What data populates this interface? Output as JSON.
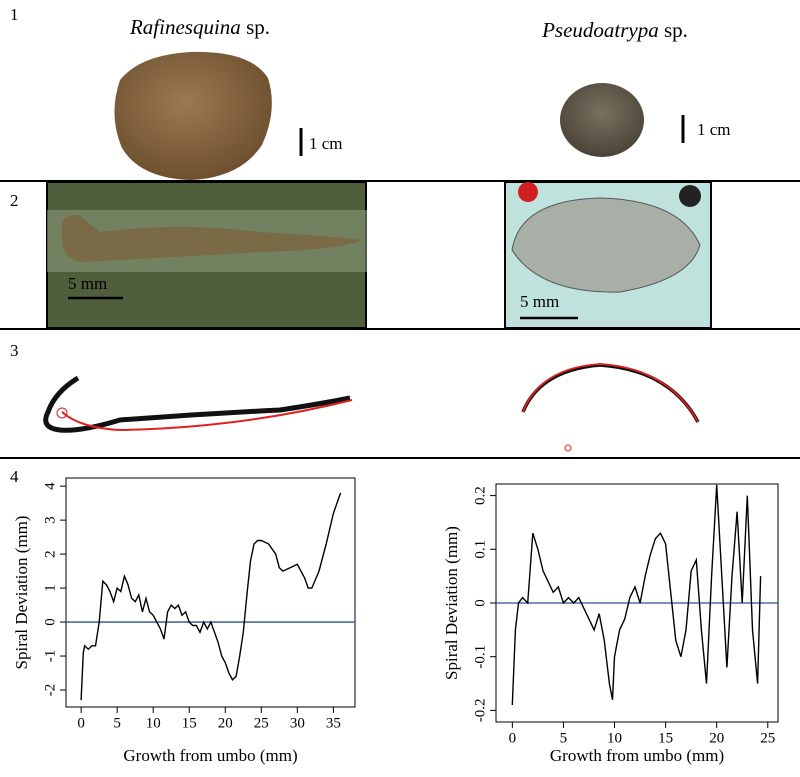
{
  "panels": {
    "labels": [
      "1",
      "2",
      "3",
      "4"
    ],
    "specimens": [
      {
        "genus": "Rafinesquina",
        "suffix": " sp.",
        "scale_photo": "1 cm",
        "scale_section": "5 mm"
      },
      {
        "genus": "Pseudoatrypa",
        "suffix": " sp.",
        "scale_photo": "1 cm",
        "scale_section": "5 mm"
      }
    ]
  },
  "chart_data": [
    {
      "type": "line",
      "xlabel": "Growth from umbo (mm)",
      "ylabel": "Spiral Deviation (mm)",
      "color": "#000000",
      "reference_line": 0,
      "reference_color": "#2f4f8f",
      "xlim": [
        -2.1,
        38
      ],
      "ylim": [
        -2.5,
        4.24
      ],
      "xticks": [
        0,
        5,
        10,
        15,
        20,
        25,
        30,
        35
      ],
      "yticks": [
        -2,
        -1,
        0,
        1,
        2,
        3,
        4
      ],
      "x": [
        0,
        0.3,
        0.5,
        1,
        1.5,
        2,
        2.5,
        3,
        3.5,
        4,
        4.5,
        5,
        5.5,
        6,
        6.5,
        7,
        7.5,
        8,
        8.5,
        9,
        9.5,
        10,
        10.5,
        11,
        11.5,
        12,
        12.5,
        13,
        13.5,
        14,
        14.5,
        15,
        15.5,
        16,
        16.5,
        17,
        17.5,
        18,
        18.5,
        19,
        19.5,
        20,
        20.5,
        21,
        21.5,
        22,
        22.5,
        23,
        23.5,
        24,
        24.5,
        25,
        26,
        27,
        27.5,
        28,
        29,
        30,
        31,
        31.5,
        32,
        33,
        34,
        35,
        36
      ],
      "values": [
        -2.3,
        -0.9,
        -0.7,
        -0.8,
        -0.7,
        -0.7,
        0,
        1.2,
        1.1,
        0.9,
        0.6,
        1.0,
        0.9,
        1.35,
        1.1,
        0.7,
        0.6,
        0.8,
        0.3,
        0.7,
        0.3,
        0.2,
        0.0,
        -0.2,
        -0.5,
        0.3,
        0.5,
        0.4,
        0.5,
        0.2,
        0.3,
        0.0,
        -0.1,
        -0.1,
        -0.3,
        0.0,
        -0.2,
        0.0,
        -0.3,
        -0.6,
        -1.0,
        -1.2,
        -1.5,
        -1.7,
        -1.6,
        -1.0,
        -0.3,
        0.8,
        1.8,
        2.3,
        2.4,
        2.4,
        2.3,
        2.0,
        1.6,
        1.5,
        1.6,
        1.7,
        1.3,
        1.0,
        1.0,
        1.5,
        2.3,
        3.2,
        3.8
      ]
    },
    {
      "type": "line",
      "xlabel": "Growth from umbo (mm)",
      "ylabel": "Spiral Deviation (mm)",
      "color": "#000000",
      "reference_line": 0,
      "reference_color": "#2f4f8f",
      "xlim": [
        -1.6,
        26
      ],
      "ylim": [
        -0.2216,
        0.2216
      ],
      "xticks": [
        0,
        5,
        10,
        15,
        20,
        25
      ],
      "yticks": [
        -0.2,
        -0.1,
        0,
        0.1,
        0.2
      ],
      "x": [
        0,
        0.3,
        0.6,
        1,
        1.5,
        2,
        2.5,
        3,
        3.5,
        4,
        4.5,
        5,
        5.5,
        6,
        6.5,
        7,
        7.5,
        8,
        8.5,
        9,
        9.5,
        9.8,
        10,
        10.5,
        11,
        11.5,
        12,
        12.5,
        13,
        13.5,
        14,
        14.5,
        15,
        15.5,
        16,
        16.5,
        17,
        17.5,
        18,
        18.5,
        19,
        19.5,
        20,
        20.5,
        21,
        21.5,
        22,
        22.5,
        23,
        23.5,
        24,
        24.3
      ],
      "values": [
        -0.19,
        -0.05,
        0.0,
        0.01,
        0.0,
        0.13,
        0.1,
        0.06,
        0.04,
        0.02,
        0.03,
        0.0,
        0.01,
        0.0,
        0.01,
        -0.01,
        -0.03,
        -0.05,
        -0.02,
        -0.07,
        -0.15,
        -0.18,
        -0.1,
        -0.05,
        -0.03,
        0.01,
        0.03,
        0.0,
        0.05,
        0.09,
        0.12,
        0.13,
        0.11,
        0.02,
        -0.07,
        -0.1,
        -0.05,
        0.06,
        0.08,
        -0.05,
        -0.15,
        0.05,
        0.22,
        0.05,
        -0.12,
        0.05,
        0.17,
        0.0,
        0.2,
        -0.05,
        -0.15,
        0.05
      ]
    }
  ]
}
